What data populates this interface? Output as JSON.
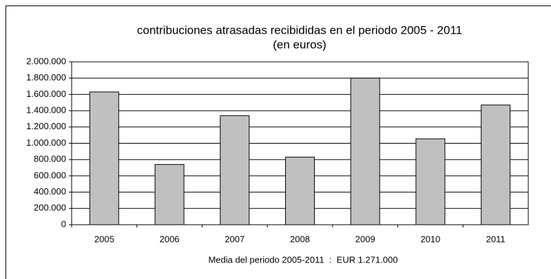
{
  "chart_data": {
    "type": "bar",
    "title": "contribuciones atrasadas recibididas en el periodo 2005 - 2011",
    "subtitle": "(en euros)",
    "annotation": "Media del periodo 2005-2011  :  EUR 1.271.000",
    "categories": [
      "2005",
      "2006",
      "2007",
      "2008",
      "2009",
      "2010",
      "2011"
    ],
    "values": [
      1630000,
      740000,
      1340000,
      830000,
      1800000,
      1055000,
      1470000
    ],
    "color": "#c0c0c0",
    "ylim": [
      0,
      2000000
    ],
    "yticks": [
      0,
      {
        "value": 200000,
        "label": "200.000"
      },
      {
        "value": 400000,
        "label": "400.000"
      },
      {
        "value": 600000,
        "label": "600.000"
      },
      {
        "value": 800000,
        "label": "800.000"
      },
      {
        "value": 1000000,
        "label": "1.000.000"
      },
      {
        "value": 1200000,
        "label": "1.200.000"
      },
      {
        "value": 1400000,
        "label": "1.400.000"
      },
      {
        "value": 1600000,
        "label": "1.600.000"
      },
      {
        "value": 1800000,
        "label": "1.800.000"
      },
      {
        "value": 2000000,
        "label": "2.000.000"
      }
    ],
    "grid": true
  }
}
